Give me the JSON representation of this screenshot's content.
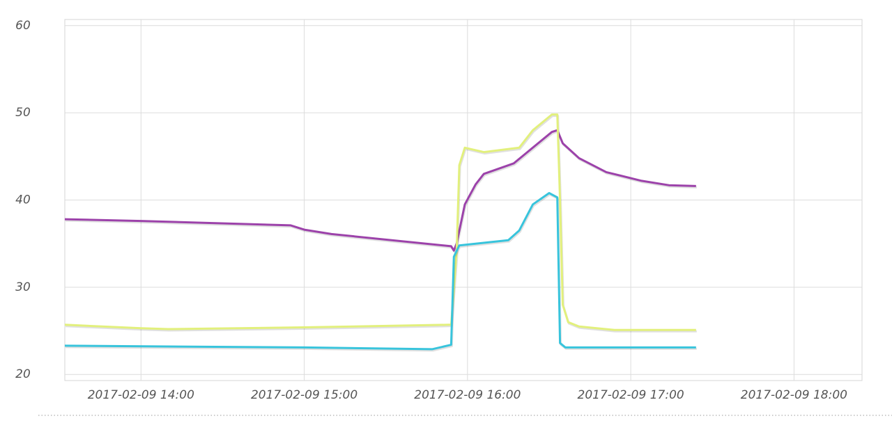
{
  "chart_data": {
    "type": "line",
    "xlim": [
      "2017-02-09 13:32",
      "2017-02-09 18:25"
    ],
    "xticks": [
      "2017-02-09 14:00",
      "2017-02-09 15:00",
      "2017-02-09 16:00",
      "2017-02-09 17:00",
      "2017-02-09 18:00"
    ],
    "ylim": [
      19.3,
      60.7
    ],
    "yticks": [
      20,
      30,
      40,
      50,
      60
    ],
    "grid": true,
    "series": [
      {
        "color": "#9c42aa",
        "x": [
          "2017-02-09 13:32",
          "2017-02-09 14:00",
          "2017-02-09 14:55",
          "2017-02-09 15:00",
          "2017-02-09 15:10",
          "2017-02-09 15:54",
          "2017-02-09 15:55",
          "2017-02-09 15:56",
          "2017-02-09 15:59",
          "2017-02-09 16:03",
          "2017-02-09 16:06",
          "2017-02-09 16:17",
          "2017-02-09 16:22",
          "2017-02-09 16:31",
          "2017-02-09 16:33",
          "2017-02-09 16:35",
          "2017-02-09 16:41",
          "2017-02-09 16:51",
          "2017-02-09 17:04",
          "2017-02-09 17:14",
          "2017-02-09 17:24"
        ],
        "values": [
          37.8,
          37.6,
          37.1,
          36.6,
          36.1,
          34.7,
          34.2,
          35,
          39.5,
          41.8,
          43,
          44.2,
          45.5,
          47.8,
          48,
          46.5,
          44.8,
          43.2,
          42.2,
          41.7,
          41.6
        ]
      },
      {
        "color": "#e2f07c",
        "x": [
          "2017-02-09 13:32",
          "2017-02-09 14:00",
          "2017-02-09 14:10",
          "2017-02-09 15:00",
          "2017-02-09 15:53",
          "2017-02-09 15:54",
          "2017-02-09 15:56",
          "2017-02-09 15:57",
          "2017-02-09 15:59",
          "2017-02-09 16:06",
          "2017-02-09 16:19",
          "2017-02-09 16:24",
          "2017-02-09 16:31",
          "2017-02-09 16:33",
          "2017-02-09 16:34",
          "2017-02-09 16:35",
          "2017-02-09 16:37",
          "2017-02-09 16:41",
          "2017-02-09 16:54",
          "2017-02-09 17:24"
        ],
        "values": [
          25.7,
          25.3,
          25.2,
          25.4,
          25.7,
          25.7,
          34,
          44,
          46,
          45.5,
          46,
          48,
          49.8,
          49.8,
          40,
          28,
          26,
          25.5,
          25.1,
          25.1
        ]
      },
      {
        "color": "#38c4dc",
        "x": [
          "2017-02-09 13:32",
          "2017-02-09 15:00",
          "2017-02-09 15:47",
          "2017-02-09 15:54",
          "2017-02-09 15:55",
          "2017-02-09 15:57",
          "2017-02-09 16:15",
          "2017-02-09 16:19",
          "2017-02-09 16:24",
          "2017-02-09 16:30",
          "2017-02-09 16:33",
          "2017-02-09 16:34",
          "2017-02-09 16:36",
          "2017-02-09 17:24"
        ],
        "values": [
          23.3,
          23.1,
          22.9,
          23.4,
          33.5,
          34.8,
          35.4,
          36.5,
          39.5,
          40.8,
          40.3,
          23.6,
          23.1,
          23.1
        ]
      }
    ]
  }
}
